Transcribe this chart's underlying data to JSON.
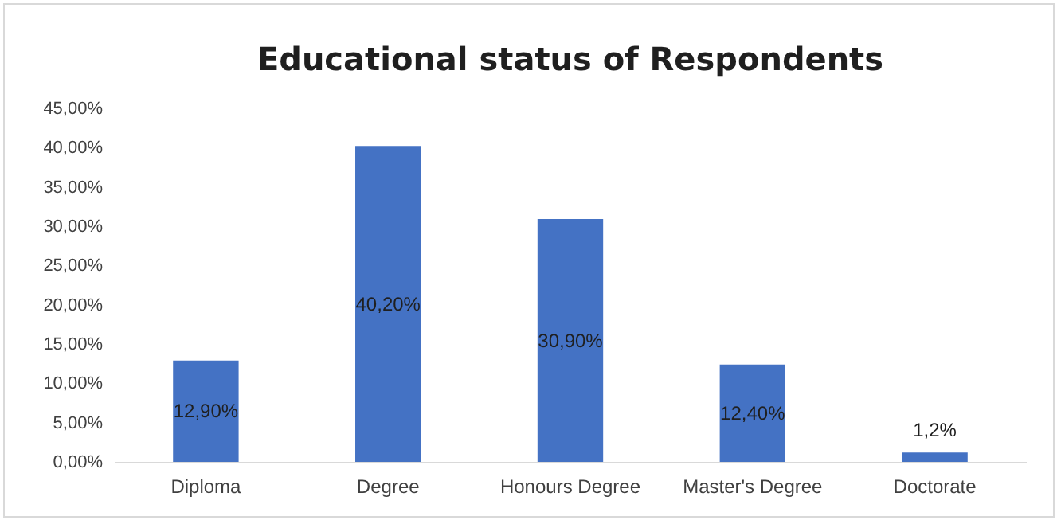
{
  "chart_data": {
    "type": "bar",
    "title": "Educational status of Respondents",
    "categories": [
      "Diploma",
      "Degree",
      "Honours Degree",
      "Master's Degree",
      "Doctorate"
    ],
    "values": [
      12.9,
      40.2,
      30.9,
      12.4,
      1.2
    ],
    "value_labels": [
      "12,90%",
      "40,20%",
      "30,90%",
      "12,40%",
      "1,2%"
    ],
    "color": "#4472c4",
    "ylim": [
      0,
      45
    ],
    "yticks": [
      {
        "value": 0,
        "label": "0,00%"
      },
      {
        "value": 5,
        "label": "5,00%"
      },
      {
        "value": 10,
        "label": "10,00%"
      },
      {
        "value": 15,
        "label": "15,00%"
      },
      {
        "value": 20,
        "label": "20,00%"
      },
      {
        "value": 25,
        "label": "25,00%"
      },
      {
        "value": 30,
        "label": "30,00%"
      },
      {
        "value": 35,
        "label": "35,00%"
      },
      {
        "value": 40,
        "label": "40,00%"
      },
      {
        "value": 45,
        "label": "45,00%"
      }
    ],
    "grid": false
  }
}
